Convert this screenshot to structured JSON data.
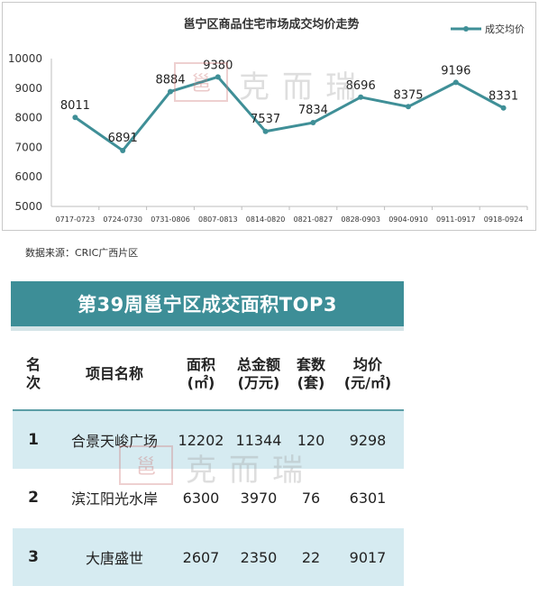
{
  "chart_data": {
    "type": "line",
    "title": "邕宁区商品住宅市场成交均价走势",
    "categories": [
      "0717-0723",
      "0724-0730",
      "0731-0806",
      "0807-0813",
      "0814-0820",
      "0821-0827",
      "0828-0903",
      "0904-0910",
      "0911-0917",
      "0918-0924"
    ],
    "series": [
      {
        "name": "成交均价",
        "values": [
          8011,
          6891,
          8884,
          9380,
          7537,
          7834,
          8696,
          8375,
          9196,
          8331
        ]
      }
    ],
    "yticks": [
      "10000",
      "9000",
      "8000",
      "7000",
      "6000",
      "5000"
    ],
    "ylim": [
      5000,
      10000
    ],
    "color": "#3f8f97",
    "legend": "top-right",
    "grid": false
  },
  "source_note": "数据来源：CRIC广西片区",
  "table": {
    "title": "第39周邕宁区成交面积TOP3",
    "headers": [
      {
        "line1": "名",
        "line2": "次"
      },
      {
        "line1": "项目名称",
        "line2": ""
      },
      {
        "line1": "面积",
        "line2": "(㎡)"
      },
      {
        "line1": "总金额",
        "line2": "(万元)"
      },
      {
        "line1": "套数",
        "line2": "(套)"
      },
      {
        "line1": "均价",
        "line2": "(元/㎡)"
      }
    ],
    "rows": [
      [
        "1",
        "合景天峻广场",
        "12202",
        "11344",
        "120",
        "9298"
      ],
      [
        "2",
        "滨江阳光水岸",
        "6300",
        "3970",
        "76",
        "6301"
      ],
      [
        "3",
        "大唐盛世",
        "2607",
        "2350",
        "22",
        "9017"
      ]
    ]
  },
  "watermark": {
    "logo": "邕",
    "text": "克而瑞"
  },
  "colors": {
    "banner": "#3d8e97",
    "row_alt": "#d6ebf1",
    "line": "#3f8f97"
  }
}
